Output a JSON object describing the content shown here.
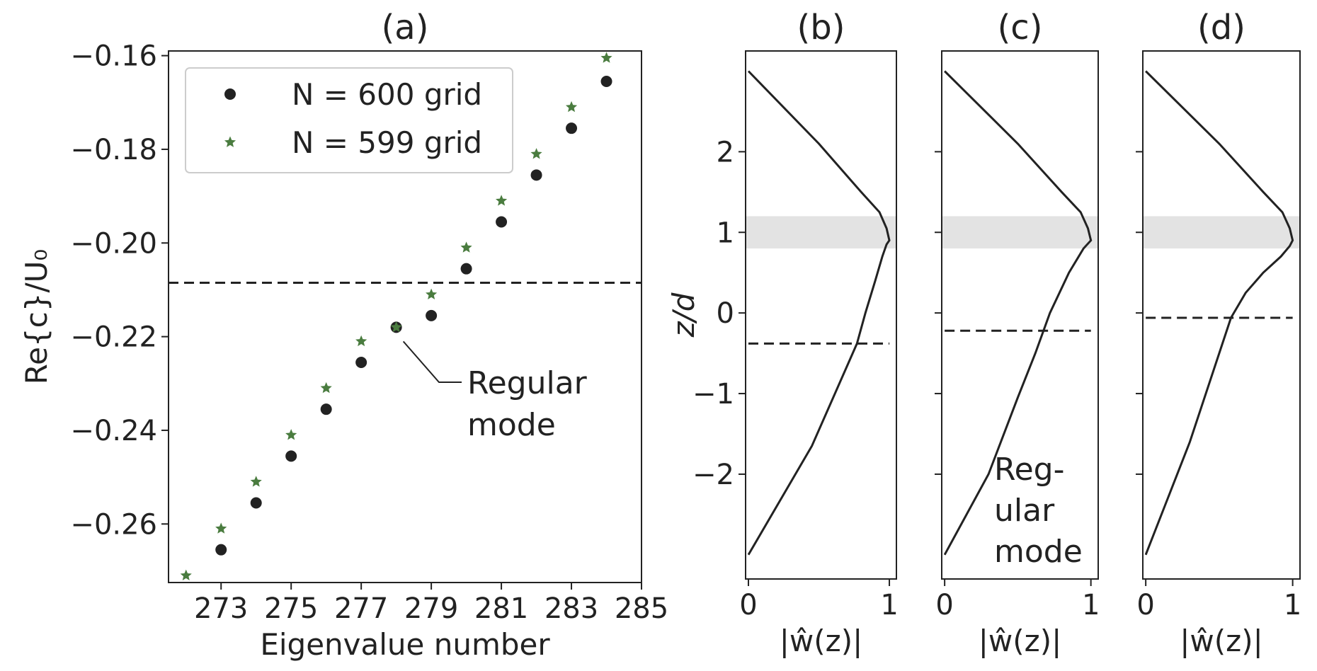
{
  "chart_data": [
    {
      "panel": "(a)",
      "type": "scatter",
      "title": "(a)",
      "xlabel": "Eigenvalue number",
      "ylabel": "Re{c}/U₀",
      "xlim": [
        271.5,
        285
      ],
      "ylim": [
        -0.2725,
        -0.159
      ],
      "xticks": [
        273,
        275,
        277,
        279,
        281,
        283,
        285
      ],
      "yticks": [
        -0.16,
        -0.18,
        -0.2,
        -0.22,
        -0.24,
        -0.26
      ],
      "ytick_labels": [
        "−0.16",
        "−0.18",
        "−0.20",
        "−0.22",
        "−0.24",
        "−0.26"
      ],
      "series": [
        {
          "name": "N = 600 grid",
          "marker": "circle",
          "color": "#222222",
          "x": [
            273,
            274,
            275,
            276,
            277,
            278,
            279,
            280,
            281,
            282,
            283,
            284
          ],
          "y": [
            -0.2655,
            -0.2555,
            -0.2455,
            -0.2355,
            -0.2255,
            -0.218,
            -0.2155,
            -0.2055,
            -0.1955,
            -0.1855,
            -0.1755,
            -0.1655
          ]
        },
        {
          "name": "N = 599 grid",
          "marker": "star",
          "color": "#4a7c3f",
          "x": [
            272,
            273,
            274,
            275,
            276,
            277,
            278,
            279,
            280,
            281,
            282,
            283,
            284
          ],
          "y": [
            -0.271,
            -0.261,
            -0.251,
            -0.241,
            -0.231,
            -0.221,
            -0.218,
            -0.211,
            -0.201,
            -0.191,
            -0.181,
            -0.171,
            -0.1605
          ]
        }
      ],
      "hline": -0.2085,
      "annotation": {
        "text_line1": "Regular",
        "text_line2": "mode",
        "x": 278,
        "y": -0.218
      },
      "legend": "top-left"
    },
    {
      "panel": "(b)",
      "type": "line",
      "title": "(b)",
      "xlabel": "|ŵ(z)|",
      "ylabel": "z/d",
      "xlim": [
        -0.02,
        1.05
      ],
      "ylim": [
        -3.3,
        3.25
      ],
      "xticks": [
        0,
        1
      ],
      "yticks": [
        -2,
        -1,
        0,
        1,
        2
      ],
      "ytick_labels": [
        "−2",
        "−1",
        "0",
        "1",
        "2"
      ],
      "band": [
        0.8,
        1.2
      ],
      "hline": -0.38,
      "curve": {
        "x": [
          0.0,
          0.45,
          0.77,
          0.83,
          0.9,
          0.95,
          0.98,
          1.0,
          0.98,
          0.93,
          0.8,
          0.5,
          0.0
        ],
        "y": [
          -3.0,
          -1.65,
          -0.38,
          0.0,
          0.4,
          0.7,
          0.85,
          0.9,
          1.05,
          1.25,
          1.5,
          2.1,
          3.0
        ]
      }
    },
    {
      "panel": "(c)",
      "type": "line",
      "title": "(c)",
      "xlabel": "|ŵ(z)|",
      "xlim": [
        -0.02,
        1.05
      ],
      "ylim": [
        -3.3,
        3.25
      ],
      "xticks": [
        0,
        1
      ],
      "yticks": [
        -2,
        -1,
        0,
        1,
        2
      ],
      "band": [
        0.8,
        1.2
      ],
      "hline": -0.22,
      "annotation": {
        "lines": [
          "Reg-",
          "ular",
          "mode"
        ]
      },
      "curve": {
        "x": [
          0.0,
          0.3,
          0.5,
          0.62,
          0.72,
          0.85,
          0.95,
          1.0,
          0.98,
          0.93,
          0.8,
          0.5,
          0.0
        ],
        "y": [
          -3.0,
          -2.0,
          -1.05,
          -0.5,
          0.0,
          0.5,
          0.8,
          0.9,
          1.05,
          1.25,
          1.5,
          2.1,
          3.0
        ]
      }
    },
    {
      "panel": "(d)",
      "type": "line",
      "title": "(d)",
      "xlabel": "|ŵ(z)|",
      "xlim": [
        -0.02,
        1.05
      ],
      "ylim": [
        -3.3,
        3.25
      ],
      "xticks": [
        0,
        1
      ],
      "yticks": [
        -2,
        -1,
        0,
        1,
        2
      ],
      "band": [
        0.8,
        1.2
      ],
      "hline": -0.06,
      "curve": {
        "x": [
          0.0,
          0.3,
          0.5,
          0.58,
          0.68,
          0.8,
          0.92,
          0.98,
          1.0,
          0.98,
          0.93,
          0.8,
          0.5,
          0.0
        ],
        "y": [
          -3.0,
          -1.6,
          -0.5,
          -0.06,
          0.25,
          0.5,
          0.7,
          0.83,
          0.9,
          1.05,
          1.25,
          1.5,
          2.1,
          3.0
        ]
      }
    }
  ]
}
